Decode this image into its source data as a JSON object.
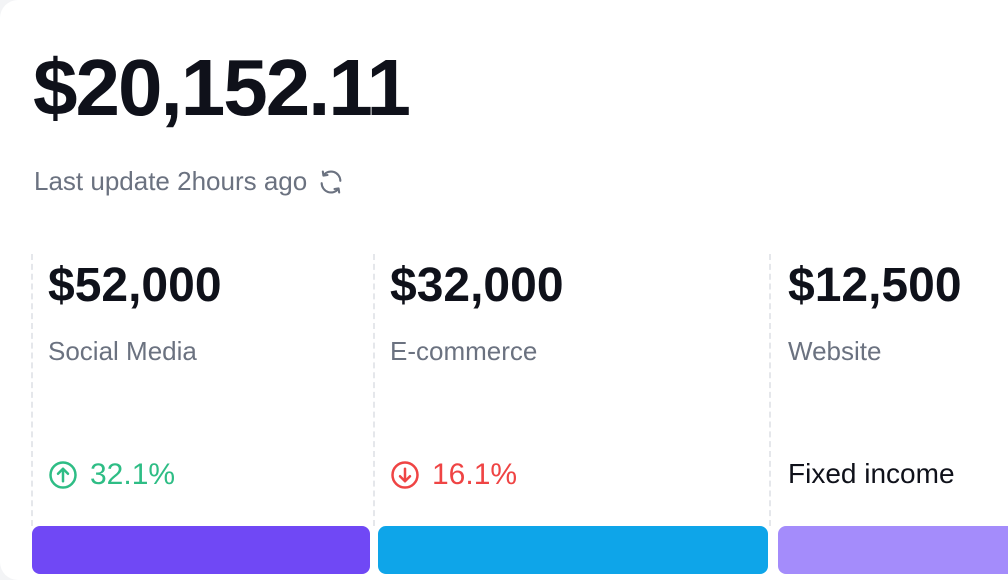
{
  "summary": {
    "total": "$20,152.11",
    "last_update": "Last update 2hours ago"
  },
  "sources": [
    {
      "amount": "$52,000",
      "label": "Social Media",
      "trend": "32.1%",
      "trend_direction": "up",
      "bar_color": "#7048f5"
    },
    {
      "amount": "$32,000",
      "label": "E-commerce",
      "trend": "16.1%",
      "trend_direction": "down",
      "bar_color": "#0ea5e9"
    },
    {
      "amount": "$12,500",
      "label": "Website",
      "trend": "Fixed income",
      "trend_direction": "none",
      "bar_color": "#a48cfb"
    }
  ],
  "colors": {
    "up": "#2ebd85",
    "down": "#ef4444"
  },
  "icons": {
    "refresh": "refresh-icon",
    "up": "arrow-up-circle-icon",
    "down": "arrow-down-circle-icon"
  }
}
